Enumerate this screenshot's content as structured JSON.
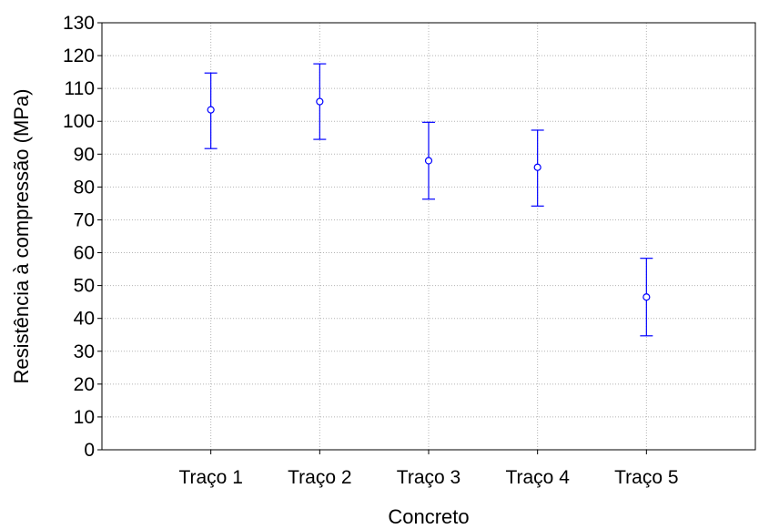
{
  "chart_data": {
    "type": "scatter",
    "title": "",
    "xlabel": "Concreto",
    "ylabel": "Resistência à compressão (MPa)",
    "ylim": [
      0,
      130
    ],
    "yticks": [
      0,
      10,
      20,
      30,
      40,
      50,
      60,
      70,
      80,
      90,
      100,
      110,
      120,
      130
    ],
    "categories": [
      "Traço 1",
      "Traço 2",
      "Traço 3",
      "Traço 4",
      "Traço 5"
    ],
    "series": [
      {
        "values": [
          103.5,
          106,
          88,
          86,
          46.5
        ],
        "lower": [
          91.7,
          94.5,
          76.3,
          74.2,
          34.7
        ],
        "upper": [
          114.7,
          117.5,
          99.7,
          97.3,
          58.3
        ],
        "color": "#0000ff"
      }
    ],
    "grid": true,
    "legend": "none"
  }
}
